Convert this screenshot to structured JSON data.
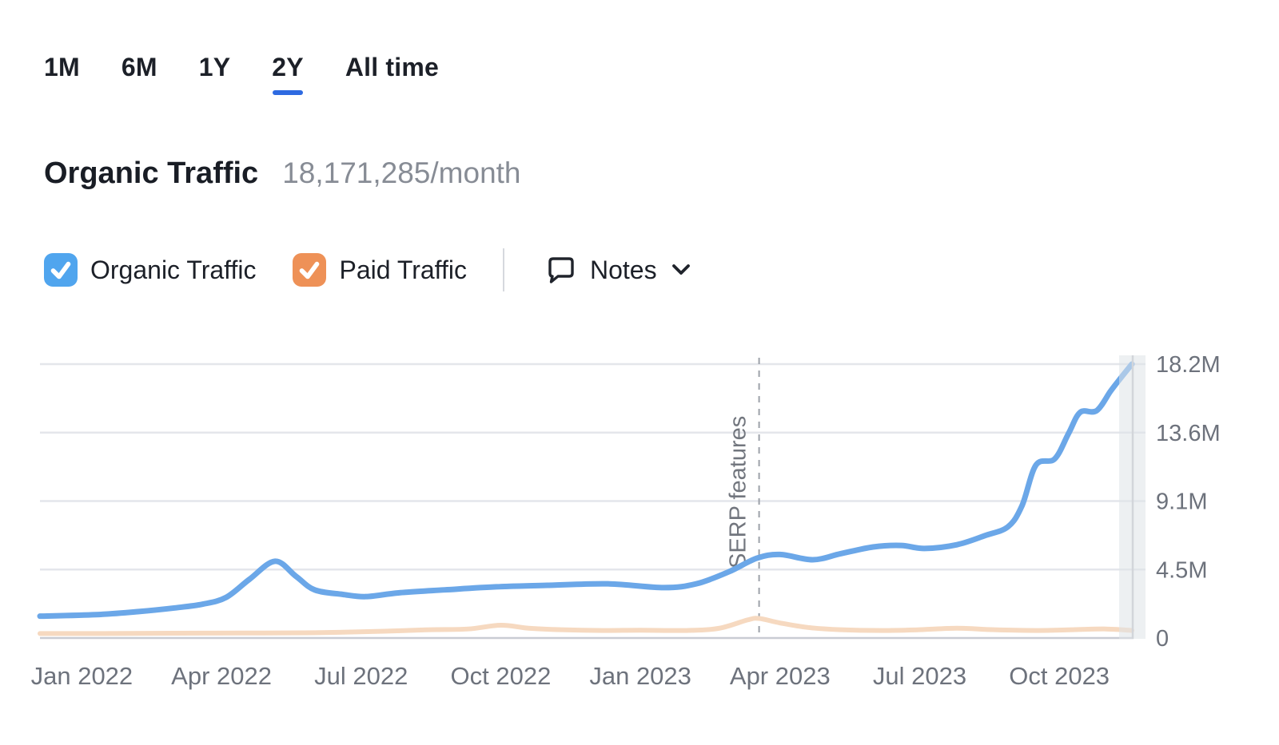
{
  "time_range_tabs": {
    "items": [
      {
        "label": "1M",
        "active": false
      },
      {
        "label": "6M",
        "active": false
      },
      {
        "label": "1Y",
        "active": false
      },
      {
        "label": "2Y",
        "active": true
      },
      {
        "label": "All time",
        "active": false
      }
    ],
    "active_underline_color": "#2e6ae1"
  },
  "header": {
    "title": "Organic Traffic",
    "value": "18,171,285/month"
  },
  "legend": {
    "organic": {
      "label": "Organic Traffic",
      "checked": true,
      "color": "#50a5ee"
    },
    "paid": {
      "label": "Paid Traffic",
      "checked": true,
      "color": "#ee9157"
    },
    "notes": {
      "label": "Notes"
    }
  },
  "chart_data": {
    "type": "line",
    "title": "Organic Traffic",
    "value_unit": "million visits per month",
    "x_unit": "months since Jan 2022",
    "x_domain": [
      -0.9,
      22.56
    ],
    "ylim_millions": [
      0,
      18.2
    ],
    "grid": true,
    "y_axis_side": "right",
    "y_ticks": [
      {
        "label": "18.2M",
        "value": 18.2
      },
      {
        "label": "13.6M",
        "value": 13.65
      },
      {
        "label": "9.1M",
        "value": 9.1
      },
      {
        "label": "4.5M",
        "value": 4.55
      },
      {
        "label": "0",
        "value": 0
      }
    ],
    "x_ticks": [
      {
        "label": "Jan 2022",
        "month": 0
      },
      {
        "label": "Apr 2022",
        "month": 3
      },
      {
        "label": "Jul 2022",
        "month": 6
      },
      {
        "label": "Oct 2022",
        "month": 9
      },
      {
        "label": "Jan 2023",
        "month": 12
      },
      {
        "label": "Apr 2023",
        "month": 15
      },
      {
        "label": "Jul 2023",
        "month": 18
      },
      {
        "label": "Oct 2023",
        "month": 21
      }
    ],
    "annotation": {
      "label": "SERP features",
      "month": 14.55
    },
    "series": [
      {
        "name": "Paid Traffic",
        "color": "#f6d9c0",
        "stroke_width": 6,
        "points": [
          [
            -0.9,
            0.3
          ],
          [
            0.5,
            0.3
          ],
          [
            2,
            0.32
          ],
          [
            3.5,
            0.33
          ],
          [
            5,
            0.35
          ],
          [
            6.5,
            0.45
          ],
          [
            7.5,
            0.55
          ],
          [
            8.3,
            0.6
          ],
          [
            9.0,
            0.85
          ],
          [
            9.6,
            0.65
          ],
          [
            10.3,
            0.55
          ],
          [
            11.2,
            0.5
          ],
          [
            12.0,
            0.52
          ],
          [
            13.0,
            0.5
          ],
          [
            13.7,
            0.65
          ],
          [
            14.3,
            1.2
          ],
          [
            14.55,
            1.3
          ],
          [
            15.0,
            1.0
          ],
          [
            15.6,
            0.7
          ],
          [
            16.3,
            0.55
          ],
          [
            17.2,
            0.5
          ],
          [
            18.0,
            0.55
          ],
          [
            18.8,
            0.65
          ],
          [
            19.6,
            0.55
          ],
          [
            20.5,
            0.5
          ],
          [
            21.3,
            0.55
          ],
          [
            22.0,
            0.6
          ],
          [
            22.56,
            0.5
          ]
        ]
      },
      {
        "name": "Organic Traffic",
        "color": "#6ba7e8",
        "stroke_width": 7,
        "points": [
          [
            -0.9,
            1.45
          ],
          [
            0.3,
            1.55
          ],
          [
            1.2,
            1.75
          ],
          [
            2.0,
            2.0
          ],
          [
            2.6,
            2.25
          ],
          [
            3.1,
            2.7
          ],
          [
            3.6,
            3.9
          ],
          [
            4.15,
            5.1
          ],
          [
            4.6,
            4.1
          ],
          [
            5.0,
            3.2
          ],
          [
            5.6,
            2.9
          ],
          [
            6.1,
            2.75
          ],
          [
            6.8,
            3.0
          ],
          [
            7.8,
            3.2
          ],
          [
            8.9,
            3.4
          ],
          [
            10.0,
            3.5
          ],
          [
            11.3,
            3.6
          ],
          [
            12.5,
            3.35
          ],
          [
            13.2,
            3.6
          ],
          [
            13.9,
            4.4
          ],
          [
            14.5,
            5.3
          ],
          [
            15.0,
            5.55
          ],
          [
            15.7,
            5.2
          ],
          [
            16.3,
            5.6
          ],
          [
            17.0,
            6.05
          ],
          [
            17.6,
            6.15
          ],
          [
            18.1,
            5.95
          ],
          [
            18.8,
            6.2
          ],
          [
            19.4,
            6.8
          ],
          [
            19.9,
            7.4
          ],
          [
            20.2,
            8.8
          ],
          [
            20.5,
            11.5
          ],
          [
            20.9,
            11.9
          ],
          [
            21.2,
            13.6
          ],
          [
            21.45,
            15.0
          ],
          [
            21.8,
            15.1
          ],
          [
            22.1,
            16.4
          ],
          [
            22.3,
            17.2
          ],
          [
            22.56,
            18.2
          ]
        ]
      }
    ],
    "styles": {
      "gridline_color": "#e4e6eb",
      "baseline_color": "#c9ccd3",
      "dashed_line_color": "#9ca1a9",
      "axis_label_color": "#6d727c",
      "annotation_label_color": "#72767e",
      "end_band_color": "#dfe3e8"
    }
  }
}
